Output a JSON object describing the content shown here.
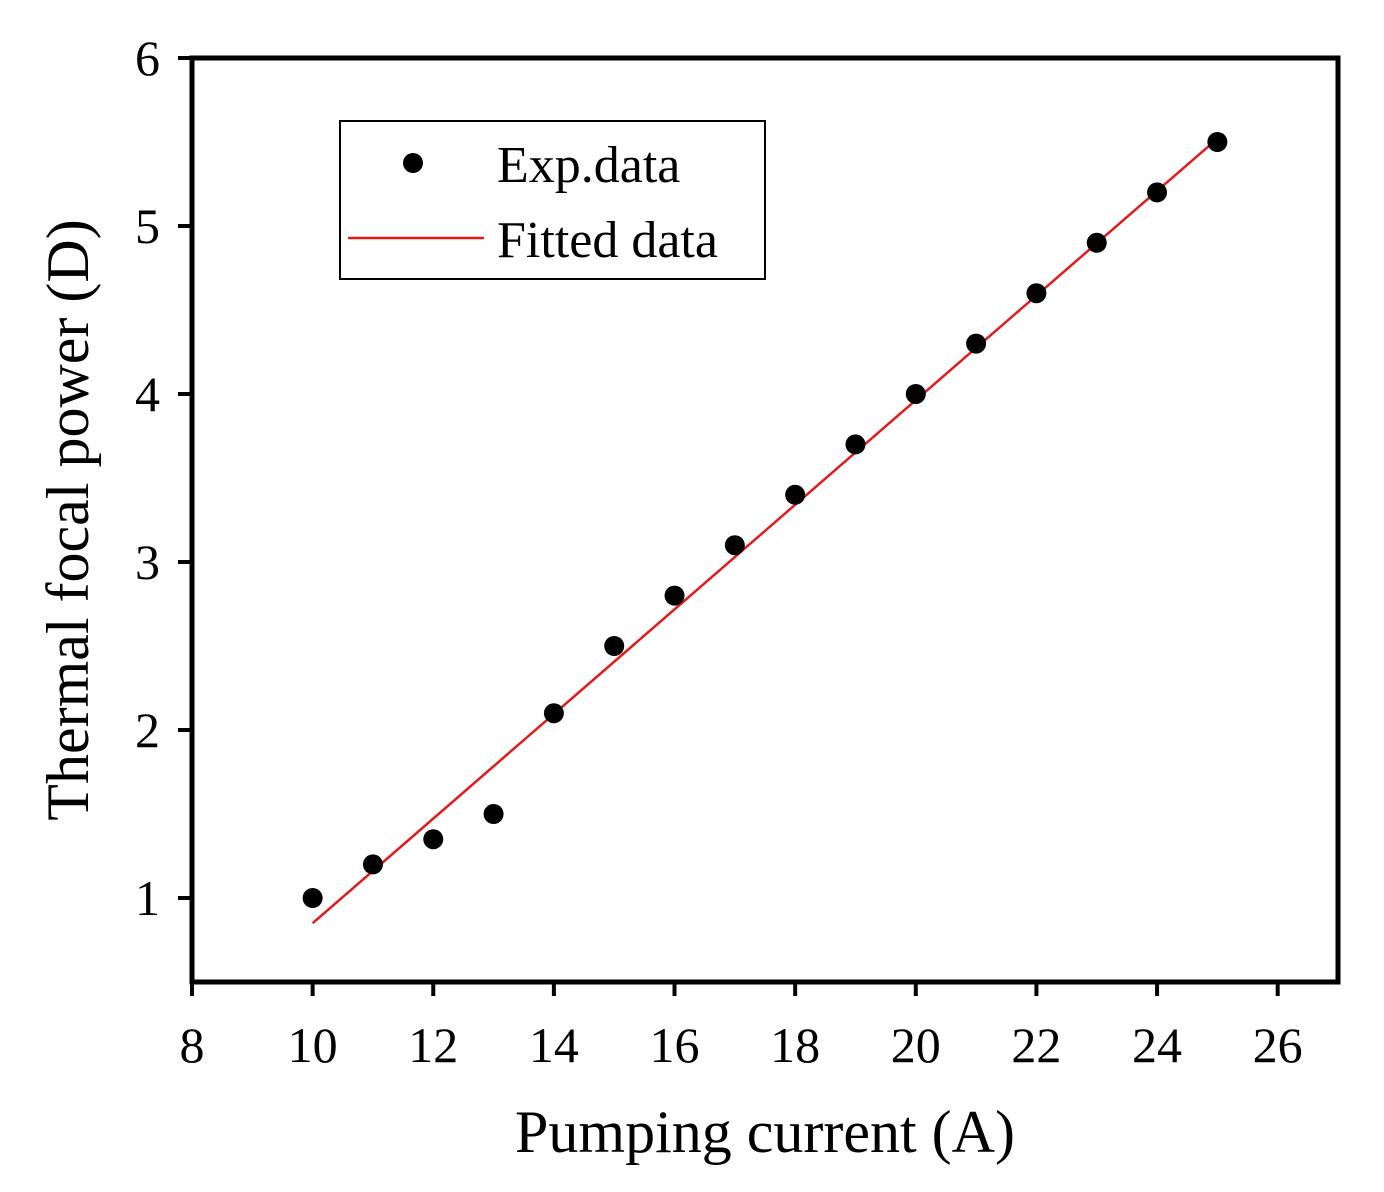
{
  "chart_data": {
    "type": "scatter",
    "title": "",
    "xlabel": "Pumping current (A)",
    "ylabel": "Thermal focal power (D)",
    "xlim": [
      8,
      27
    ],
    "ylim": [
      0.5,
      6
    ],
    "xticks": [
      8,
      10,
      12,
      14,
      16,
      18,
      20,
      22,
      24,
      26
    ],
    "yticks": [
      1,
      2,
      3,
      4,
      5,
      6
    ],
    "grid": false,
    "legend_position": "top-left",
    "series": [
      {
        "name": "Exp.data",
        "kind": "scatter",
        "color": "#000000",
        "x": [
          10,
          11,
          12,
          13,
          14,
          15,
          16,
          17,
          18,
          19,
          20,
          21,
          22,
          23,
          24,
          25
        ],
        "y": [
          1.0,
          1.2,
          1.35,
          1.5,
          2.1,
          2.5,
          2.8,
          3.1,
          3.4,
          3.7,
          4.0,
          4.3,
          4.6,
          4.9,
          5.2,
          5.5
        ]
      },
      {
        "name": "Fitted data",
        "kind": "line",
        "color": "#e31a1c",
        "x": [
          10,
          25
        ],
        "y": [
          0.85,
          5.52
        ]
      }
    ]
  }
}
